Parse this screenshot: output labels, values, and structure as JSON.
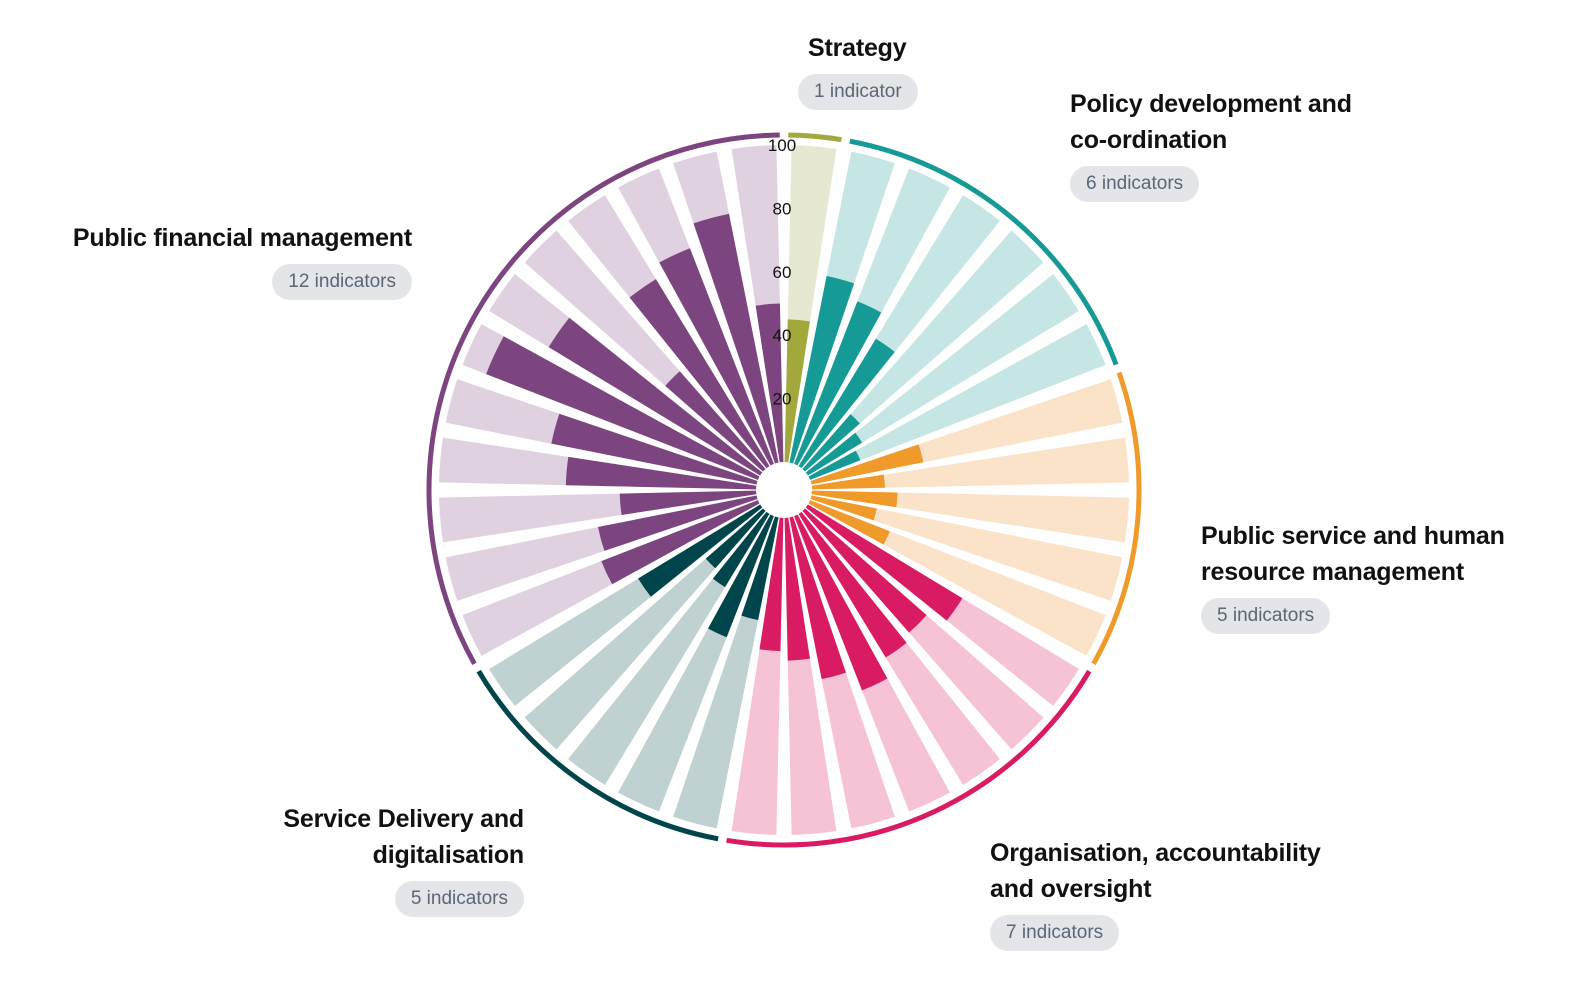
{
  "chart_data": {
    "type": "radial-bar",
    "ylim": [
      0,
      100
    ],
    "radial_ticks": [
      "20",
      "40",
      "60",
      "80",
      "100"
    ],
    "groups": [
      {
        "title_lines": [
          "Strategy"
        ],
        "badge": "1 indicator",
        "color": "#a3a83c",
        "light": "#e6e8d2",
        "values": [
          45
        ]
      },
      {
        "title_lines": [
          "Policy development and",
          "co-ordination"
        ],
        "badge": "6 indicators",
        "color": "#169a96",
        "light": "#c5e6e4",
        "values": [
          60,
          55,
          47,
          23,
          20,
          17
        ]
      },
      {
        "title_lines": [
          "Public service and human",
          "resource management"
        ],
        "badge": "5 indicators",
        "color": "#f09a2c",
        "light": "#fbe3c9",
        "values": [
          36,
          23,
          27,
          21,
          27
        ]
      },
      {
        "title_lines": [
          "Organisation, accountability",
          "and oversight"
        ],
        "badge": "7 indicators",
        "color": "#d91b63",
        "light": "#f5c3d5",
        "values": [
          57,
          51,
          53,
          59,
          52,
          45,
          42
        ]
      },
      {
        "title_lines": [
          "Service Delivery and",
          "digitalisation"
        ],
        "badge": "5 indicators",
        "color": "#00454b",
        "light": "#bfd1d0",
        "values": [
          33,
          41,
          27,
          24,
          45
        ]
      },
      {
        "title_lines": [
          "Public financial management"
        ],
        "badge": "12 indicators",
        "color": "#7d4580",
        "light": "#e0d1e1",
        "values": [
          53,
          51,
          43,
          60,
          66,
          92,
          78,
          41,
          69,
          73,
          80,
          50
        ]
      }
    ]
  }
}
